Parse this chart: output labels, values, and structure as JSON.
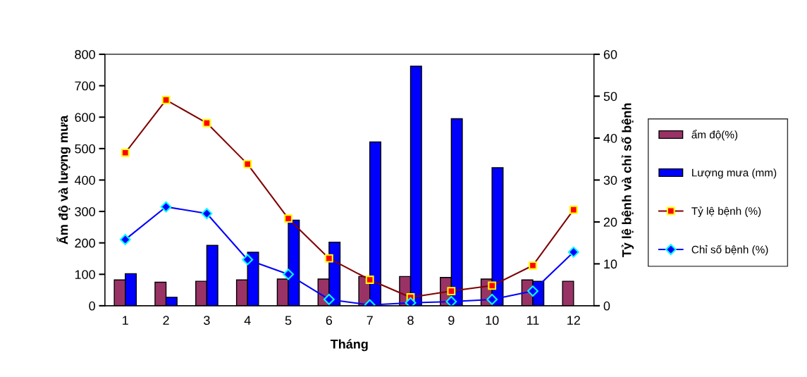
{
  "chart_data": {
    "type": "bar",
    "xlabel": "Tháng",
    "ylabel": "Ẩm độ và lượng mưa",
    "y2label": "Tỷ lệ bệnh và chỉ số bệnh",
    "categories": [
      "1",
      "2",
      "3",
      "4",
      "5",
      "6",
      "7",
      "8",
      "9",
      "10",
      "11",
      "12"
    ],
    "series": [
      {
        "name": "ẩm độ(%)",
        "color": "#993366",
        "values": [
          82,
          75,
          78,
          82,
          85,
          85,
          93,
          93,
          90,
          85,
          82,
          78
        ]
      },
      {
        "name": "Lượng mưa (mm)",
        "color": "#0000ff",
        "values": [
          102,
          27,
          192,
          170,
          272,
          202,
          521,
          762,
          595,
          439,
          78,
          null
        ]
      },
      {
        "name": "Tỷ lệ bệnh (%)",
        "type": "line",
        "axis": "y2",
        "color": "#800000",
        "marker": "square",
        "values": [
          36.5,
          49.1,
          43.6,
          33.8,
          20.8,
          11.3,
          6.2,
          2.0,
          3.5,
          4.8,
          9.6,
          22.9
        ]
      },
      {
        "name": "Chỉ số bệnh (%)",
        "type": "line",
        "axis": "y2",
        "color": "#0000ff",
        "marker": "diamond",
        "values": [
          15.8,
          23.6,
          22.0,
          11.0,
          7.5,
          1.5,
          0.2,
          0.7,
          1.0,
          1.5,
          3.5,
          12.8
        ]
      }
    ],
    "ylim": [
      0,
      800
    ],
    "yticks": [
      0,
      100,
      200,
      300,
      400,
      500,
      600,
      700,
      800
    ],
    "y2lim": [
      0,
      60
    ],
    "y2ticks": [
      0,
      10,
      20,
      30,
      40,
      50,
      60
    ],
    "grid": false,
    "legend": "right"
  }
}
